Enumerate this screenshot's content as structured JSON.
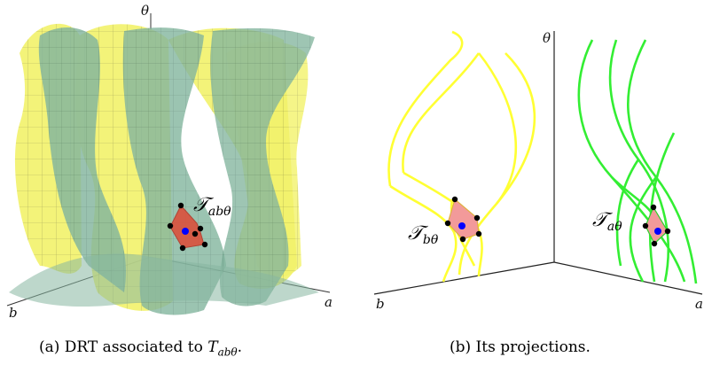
{
  "panel_a": {
    "axes": {
      "theta": "θ",
      "b": "b",
      "a": "a"
    },
    "tile_label": "abθ",
    "caption": {
      "prefix": "(a) DRT associated to ",
      "symbol": "T",
      "subscript": "abθ",
      "suffix": "."
    }
  },
  "panel_b": {
    "axes": {
      "theta": "θ",
      "b": "b",
      "a": "a"
    },
    "label_left": "bθ",
    "label_right": "aθ",
    "caption": "(b) Its projections."
  },
  "colors": {
    "yellow_surface": "#f4f46a",
    "green_surface": "#7fb39b",
    "tile_red": "#d9533f",
    "tile_pink": "#f29a9a",
    "yellow_curve": "#ffff33",
    "green_curve": "#33ee33",
    "point_blue": "#0000ff",
    "point_black": "#000000"
  }
}
